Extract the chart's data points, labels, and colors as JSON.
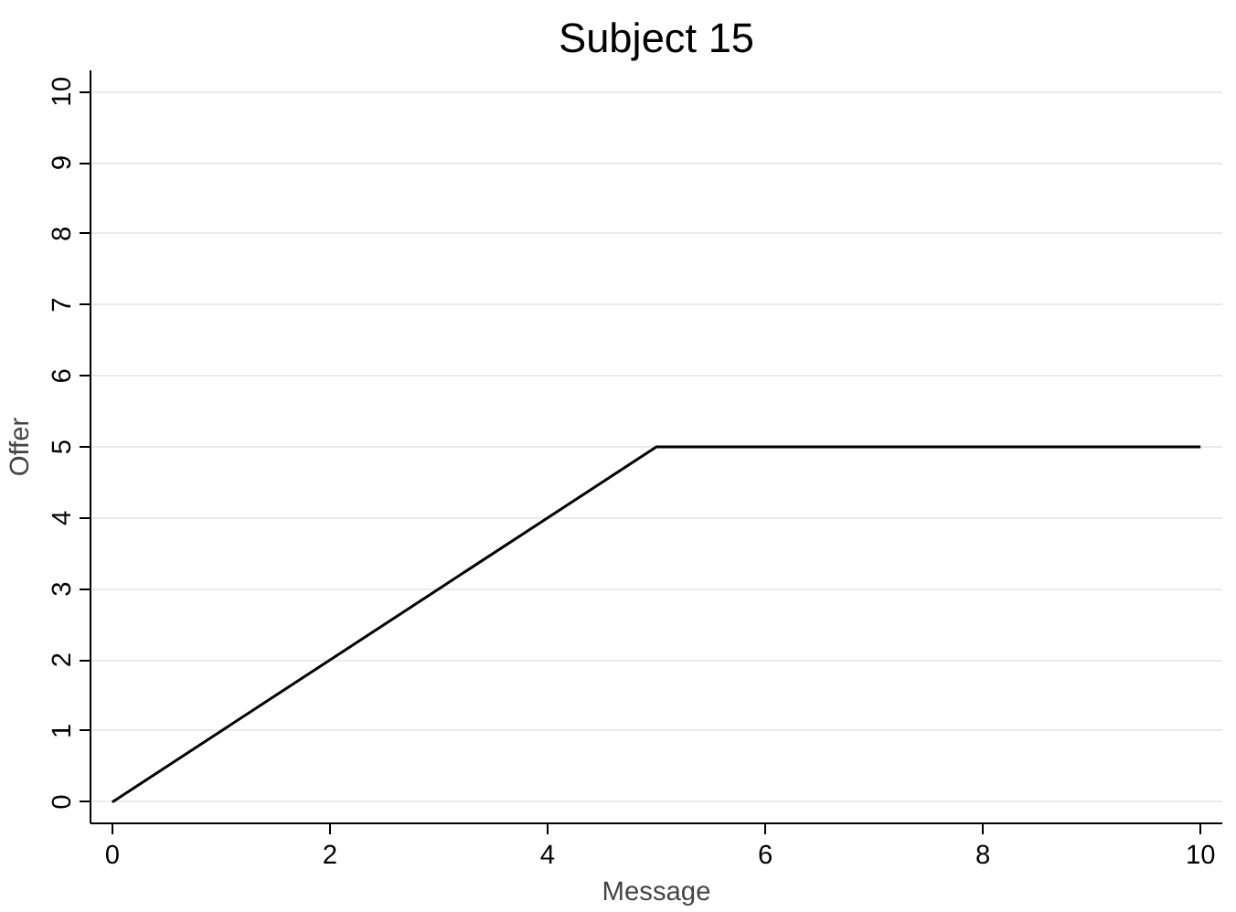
{
  "chart_data": {
    "type": "line",
    "title": "Subject 15",
    "xlabel": "Message",
    "ylabel": "Offer",
    "x": [
      0,
      1,
      2,
      3,
      4,
      5,
      6,
      7,
      8,
      9,
      10
    ],
    "series": [
      {
        "color": "#000000",
        "values": [
          0,
          1,
          2,
          3,
          4,
          5,
          5,
          5,
          5,
          5,
          5
        ]
      }
    ],
    "xlim": [
      -0.2,
      10.2
    ],
    "ylim": [
      -0.3,
      10.3
    ],
    "xticks": [
      0,
      2,
      4,
      6,
      8,
      10
    ],
    "yticks": [
      0,
      1,
      2,
      3,
      4,
      5,
      6,
      7,
      8,
      9,
      10
    ],
    "grid": "y",
    "marker": "none",
    "line_style": "solid"
  }
}
